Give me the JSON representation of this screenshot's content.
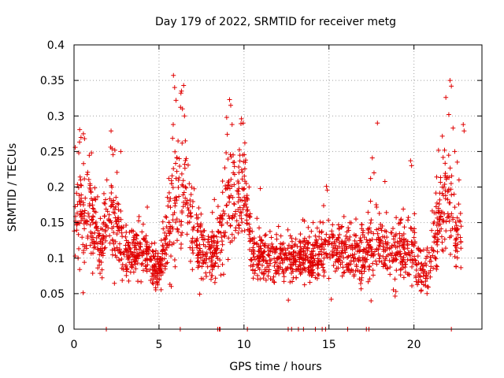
{
  "chart_data": {
    "type": "scatter",
    "title": "Day 179 of 2022, SRMTID for receiver metg",
    "xlabel": "GPS time / hours",
    "ylabel": "SRMTID / TECUs",
    "xlim": [
      0,
      24
    ],
    "ylim": [
      0,
      0.4
    ],
    "grid": true,
    "marker": "+",
    "series_color": "#e00000",
    "x_ticks": [
      {
        "value": 0,
        "label": "0"
      },
      {
        "value": 5,
        "label": "5"
      },
      {
        "value": 10,
        "label": "10"
      },
      {
        "value": 15,
        "label": "15"
      },
      {
        "value": 20,
        "label": "20"
      }
    ],
    "y_ticks": [
      {
        "value": 0,
        "label": "0"
      },
      {
        "value": 0.05,
        "label": "0.05"
      },
      {
        "value": 0.1,
        "label": "0.1"
      },
      {
        "value": 0.15,
        "label": "0.15"
      },
      {
        "value": 0.2,
        "label": "0.2"
      },
      {
        "value": 0.25,
        "label": "0.25"
      },
      {
        "value": 0.3,
        "label": "0.3"
      },
      {
        "value": 0.35,
        "label": "0.35"
      },
      {
        "value": 0.4,
        "label": "0.4"
      }
    ],
    "profile": [
      {
        "x": 0.0,
        "base": 0.15,
        "spread": 0.06
      },
      {
        "x": 0.5,
        "base": 0.17,
        "spread": 0.07
      },
      {
        "x": 1.0,
        "base": 0.16,
        "spread": 0.06
      },
      {
        "x": 1.5,
        "base": 0.11,
        "spread": 0.03
      },
      {
        "x": 2.0,
        "base": 0.16,
        "spread": 0.06
      },
      {
        "x": 2.5,
        "base": 0.14,
        "spread": 0.05
      },
      {
        "x": 3.0,
        "base": 0.1,
        "spread": 0.03
      },
      {
        "x": 4.0,
        "base": 0.11,
        "spread": 0.03
      },
      {
        "x": 5.0,
        "base": 0.08,
        "spread": 0.025
      },
      {
        "x": 5.5,
        "base": 0.12,
        "spread": 0.04
      },
      {
        "x": 6.0,
        "base": 0.18,
        "spread": 0.08
      },
      {
        "x": 6.5,
        "base": 0.19,
        "spread": 0.08
      },
      {
        "x": 7.0,
        "base": 0.13,
        "spread": 0.04
      },
      {
        "x": 8.0,
        "base": 0.1,
        "spread": 0.035
      },
      {
        "x": 8.5,
        "base": 0.11,
        "spread": 0.04
      },
      {
        "x": 9.0,
        "base": 0.18,
        "spread": 0.07
      },
      {
        "x": 9.5,
        "base": 0.17,
        "spread": 0.06
      },
      {
        "x": 10.0,
        "base": 0.2,
        "spread": 0.06
      },
      {
        "x": 10.5,
        "base": 0.1,
        "spread": 0.03
      },
      {
        "x": 12.0,
        "base": 0.1,
        "spread": 0.03
      },
      {
        "x": 14.0,
        "base": 0.1,
        "spread": 0.03
      },
      {
        "x": 15.0,
        "base": 0.11,
        "spread": 0.035
      },
      {
        "x": 16.0,
        "base": 0.11,
        "spread": 0.035
      },
      {
        "x": 17.0,
        "base": 0.1,
        "spread": 0.035
      },
      {
        "x": 18.0,
        "base": 0.12,
        "spread": 0.04
      },
      {
        "x": 19.0,
        "base": 0.11,
        "spread": 0.035
      },
      {
        "x": 20.0,
        "base": 0.11,
        "spread": 0.04
      },
      {
        "x": 20.5,
        "base": 0.07,
        "spread": 0.025
      },
      {
        "x": 21.0,
        "base": 0.1,
        "spread": 0.035
      },
      {
        "x": 21.5,
        "base": 0.15,
        "spread": 0.05
      },
      {
        "x": 22.0,
        "base": 0.2,
        "spread": 0.08
      },
      {
        "x": 22.5,
        "base": 0.13,
        "spread": 0.04
      },
      {
        "x": 22.8,
        "base": 0.13,
        "spread": 0.04
      }
    ],
    "spikes": [
      {
        "x": 0.28,
        "y": 0.248
      },
      {
        "x": 0.55,
        "y": 0.275
      },
      {
        "x": 0.62,
        "y": 0.268
      },
      {
        "x": 1.03,
        "y": 0.248
      },
      {
        "x": 2.18,
        "y": 0.279
      },
      {
        "x": 2.4,
        "y": 0.252
      },
      {
        "x": 2.75,
        "y": 0.25
      },
      {
        "x": 5.85,
        "y": 0.357
      },
      {
        "x": 5.92,
        "y": 0.34
      },
      {
        "x": 6.0,
        "y": 0.322
      },
      {
        "x": 6.32,
        "y": 0.335
      },
      {
        "x": 6.45,
        "y": 0.343
      },
      {
        "x": 6.38,
        "y": 0.31
      },
      {
        "x": 6.5,
        "y": 0.3
      },
      {
        "x": 6.55,
        "y": 0.265
      },
      {
        "x": 6.6,
        "y": 0.24
      },
      {
        "x": 9.15,
        "y": 0.323
      },
      {
        "x": 9.22,
        "y": 0.315
      },
      {
        "x": 9.3,
        "y": 0.288
      },
      {
        "x": 9.85,
        "y": 0.296
      },
      {
        "x": 9.95,
        "y": 0.29
      },
      {
        "x": 10.05,
        "y": 0.262
      },
      {
        "x": 10.1,
        "y": 0.238
      },
      {
        "x": 14.85,
        "y": 0.201
      },
      {
        "x": 17.45,
        "y": 0.212
      },
      {
        "x": 17.55,
        "y": 0.241
      },
      {
        "x": 17.65,
        "y": 0.22
      },
      {
        "x": 17.85,
        "y": 0.29
      },
      {
        "x": 19.8,
        "y": 0.237
      },
      {
        "x": 19.86,
        "y": 0.23
      },
      {
        "x": 21.8,
        "y": 0.252
      },
      {
        "x": 22.05,
        "y": 0.302
      },
      {
        "x": 22.12,
        "y": 0.35
      },
      {
        "x": 22.2,
        "y": 0.342
      },
      {
        "x": 22.3,
        "y": 0.283
      },
      {
        "x": 22.4,
        "y": 0.25
      },
      {
        "x": 22.55,
        "y": 0.235
      },
      {
        "x": 22.65,
        "y": 0.21
      },
      {
        "x": 22.9,
        "y": 0.288
      },
      {
        "x": 22.95,
        "y": 0.279
      }
    ],
    "zero_points": [
      1.9,
      6.25,
      8.45,
      8.55,
      8.6,
      10.2,
      12.6,
      12.8,
      13.2,
      13.5,
      14.2,
      14.6,
      14.8,
      16.1,
      17.2,
      17.35,
      22.2
    ],
    "point_count": 2000,
    "random_seed": 179
  }
}
